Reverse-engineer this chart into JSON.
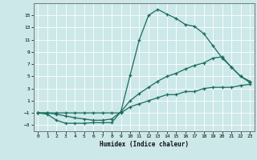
{
  "xlabel": "Humidex (Indice chaleur)",
  "bg_color": "#cce8e8",
  "line_color": "#1a6b5e",
  "grid_color": "#ffffff",
  "xlim": [
    -0.5,
    23.5
  ],
  "ylim": [
    -4.0,
    17.0
  ],
  "xticks": [
    0,
    1,
    2,
    3,
    4,
    5,
    6,
    7,
    8,
    9,
    10,
    11,
    12,
    13,
    14,
    15,
    16,
    17,
    18,
    19,
    20,
    21,
    22,
    23
  ],
  "yticks": [
    -3,
    -1,
    1,
    3,
    5,
    7,
    9,
    11,
    13,
    15
  ],
  "line1_x": [
    0,
    1,
    2,
    3,
    4,
    5,
    6,
    7,
    8,
    9,
    10,
    11,
    12,
    13,
    14,
    15,
    16,
    17,
    18,
    19,
    20,
    21,
    22,
    23
  ],
  "line1_y": [
    -1,
    -1.2,
    -2.2,
    -2.7,
    -2.7,
    -2.7,
    -2.6,
    -2.6,
    -2.6,
    -0.8,
    5.2,
    11,
    15,
    16,
    15.2,
    14.5,
    13.5,
    13.2,
    12,
    10,
    8,
    6.5,
    5,
    4
  ],
  "line2_x": [
    0,
    1,
    2,
    3,
    4,
    5,
    6,
    7,
    8,
    9,
    10,
    11,
    12,
    13,
    14,
    15,
    16,
    17,
    18,
    19,
    20,
    21,
    22,
    23
  ],
  "line2_y": [
    -1,
    -1,
    -1.2,
    -1.5,
    -1.8,
    -2,
    -2.2,
    -2.2,
    -2,
    -0.8,
    1,
    2.2,
    3.2,
    4.2,
    5,
    5.5,
    6.2,
    6.8,
    7.2,
    8,
    8.2,
    6.5,
    5,
    4.2
  ],
  "line3_x": [
    0,
    1,
    2,
    3,
    4,
    5,
    6,
    7,
    8,
    9,
    10,
    11,
    12,
    13,
    14,
    15,
    16,
    17,
    18,
    19,
    20,
    21,
    22,
    23
  ],
  "line3_y": [
    -1,
    -1,
    -1,
    -1,
    -1,
    -1,
    -1,
    -1,
    -1,
    -1,
    0,
    0.5,
    1,
    1.5,
    2,
    2,
    2.5,
    2.5,
    3,
    3.2,
    3.2,
    3.2,
    3.5,
    3.7
  ]
}
